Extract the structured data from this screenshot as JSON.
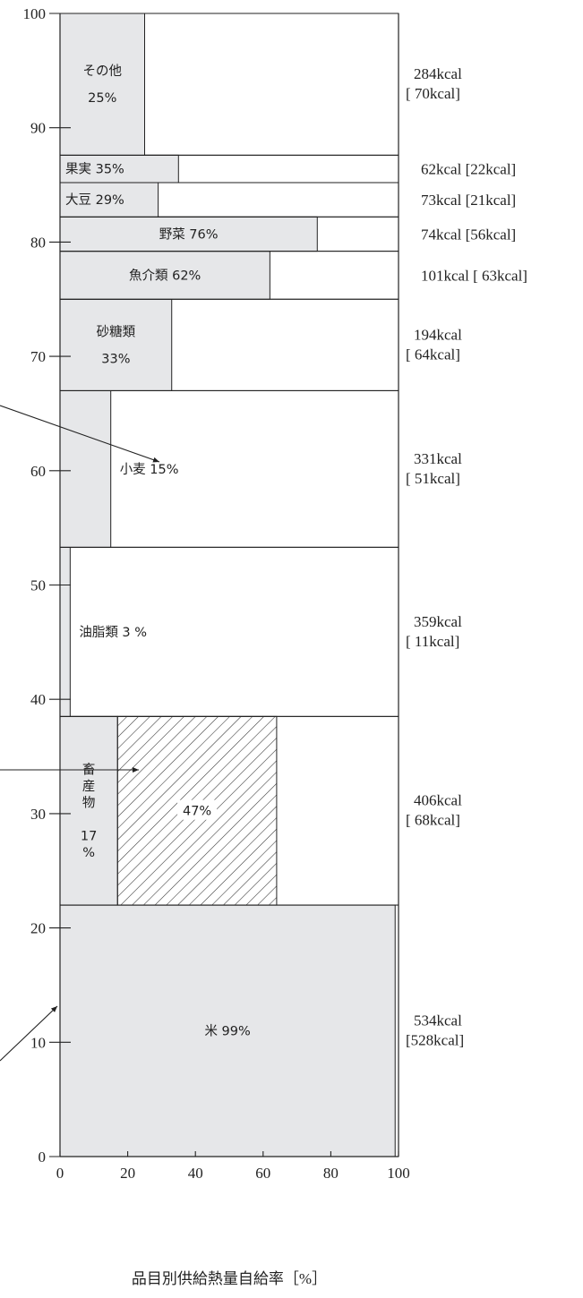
{
  "chart_data": {
    "type": "mosaic",
    "xlabel": "品目別供給熱量自給率［%］",
    "xlim": [
      0,
      100
    ],
    "ylim": [
      0,
      100
    ],
    "x_ticks": [
      "0",
      "20",
      "40",
      "60",
      "80",
      "100"
    ],
    "y_ticks": [
      "0",
      "10",
      "20",
      "30",
      "40",
      "50",
      "60",
      "70",
      "80",
      "90",
      "100"
    ],
    "colors": {
      "fill": "#e6e7e9",
      "line": "#222222",
      "background": "#ffffff"
    },
    "items": [
      {
        "id": "rice",
        "y0": 0,
        "y1": 22.0,
        "rate": 99,
        "label_lines": [
          "米 99%"
        ],
        "kcal": "534kcal",
        "kcal_domestic": "[528kcal]"
      },
      {
        "id": "livestock",
        "y0": 22.0,
        "y1": 38.5,
        "rate": 17,
        "hatched_rate": 64,
        "hatched_label": "47%",
        "label_vertical": [
          "畜",
          "産",
          "物",
          "",
          "17",
          "%"
        ],
        "kcal": "406kcal",
        "kcal_domestic": "[ 68kcal]"
      },
      {
        "id": "oils",
        "y0": 38.5,
        "y1": 53.3,
        "rate": 3,
        "label_lines": [
          "油脂類  3 %"
        ],
        "kcal": "359kcal",
        "kcal_domestic": "[ 11kcal]"
      },
      {
        "id": "wheat",
        "y0": 53.3,
        "y1": 67.0,
        "rate": 15,
        "label_lines": [
          "小麦   15%"
        ],
        "kcal": "331kcal",
        "kcal_domestic": "[ 51kcal]"
      },
      {
        "id": "sugar",
        "y0": 67.0,
        "y1": 75.0,
        "rate": 33,
        "label_lines": [
          "砂糖類",
          "33%"
        ],
        "kcal": "194kcal",
        "kcal_domestic": "[ 64kcal]"
      },
      {
        "id": "fish",
        "y0": 75.0,
        "y1": 79.2,
        "rate": 62,
        "label_lines": [
          "魚介類   62%"
        ],
        "kcal": "101kcal",
        "kcal_domestic": "[ 63kcal]"
      },
      {
        "id": "vegetables",
        "y0": 79.2,
        "y1": 82.2,
        "rate": 76,
        "label_lines": [
          "野菜   76%"
        ],
        "kcal": "74kcal",
        "kcal_domestic": "[56kcal]"
      },
      {
        "id": "soybeans",
        "y0": 82.2,
        "y1": 85.2,
        "rate": 29,
        "label_lines": [
          "大豆 29%"
        ],
        "kcal": "73kcal",
        "kcal_domestic": "[21kcal]"
      },
      {
        "id": "fruits",
        "y0": 85.2,
        "y1": 87.6,
        "rate": 35,
        "label_lines": [
          "果実   35%"
        ],
        "kcal": "62kcal",
        "kcal_domestic": "[22kcal]"
      },
      {
        "id": "other",
        "y0": 87.6,
        "y1": 100,
        "rate": 25,
        "label_lines": [
          "その他",
          "25%"
        ],
        "kcal": "284kcal",
        "kcal_domestic": "[ 70kcal]"
      }
    ]
  }
}
